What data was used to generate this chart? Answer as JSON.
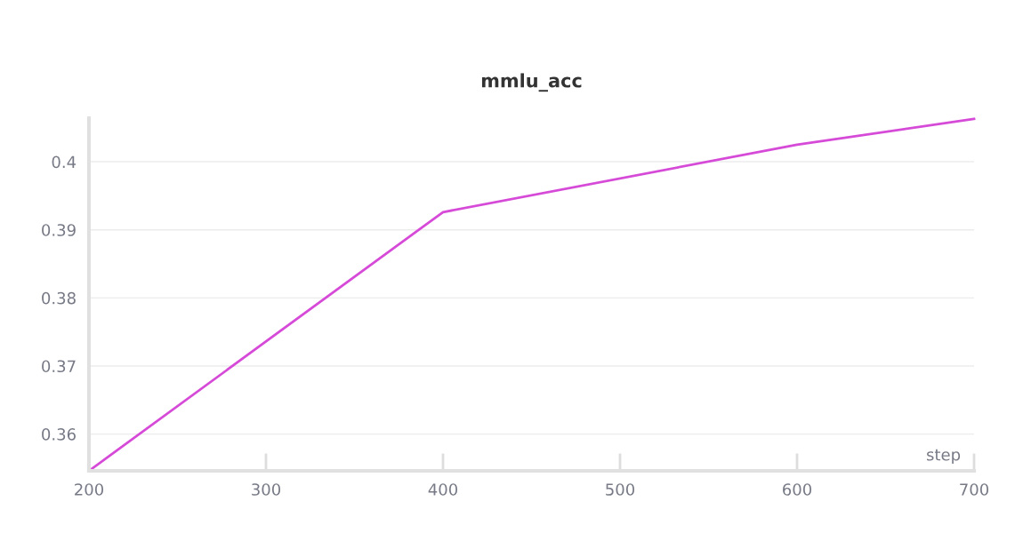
{
  "chart_data": {
    "type": "line",
    "title": "mmlu_acc",
    "xlabel": "step",
    "x": [
      200,
      400,
      600,
      700
    ],
    "series": [
      {
        "color": "#d64ad8",
        "values": [
          0.3546,
          0.3926,
          0.4025,
          0.4063
        ]
      }
    ],
    "xlim": [
      200,
      700
    ],
    "xticks": [
      200,
      300,
      400,
      500,
      600,
      700
    ],
    "ylim": [
      0.3546,
      0.4064
    ],
    "yticks": [
      0.36,
      0.37,
      0.38,
      0.39,
      {
        "value": 0.4,
        "label": "0.4"
      }
    ],
    "grid": "y",
    "marker": "none",
    "line_style": "solid"
  }
}
